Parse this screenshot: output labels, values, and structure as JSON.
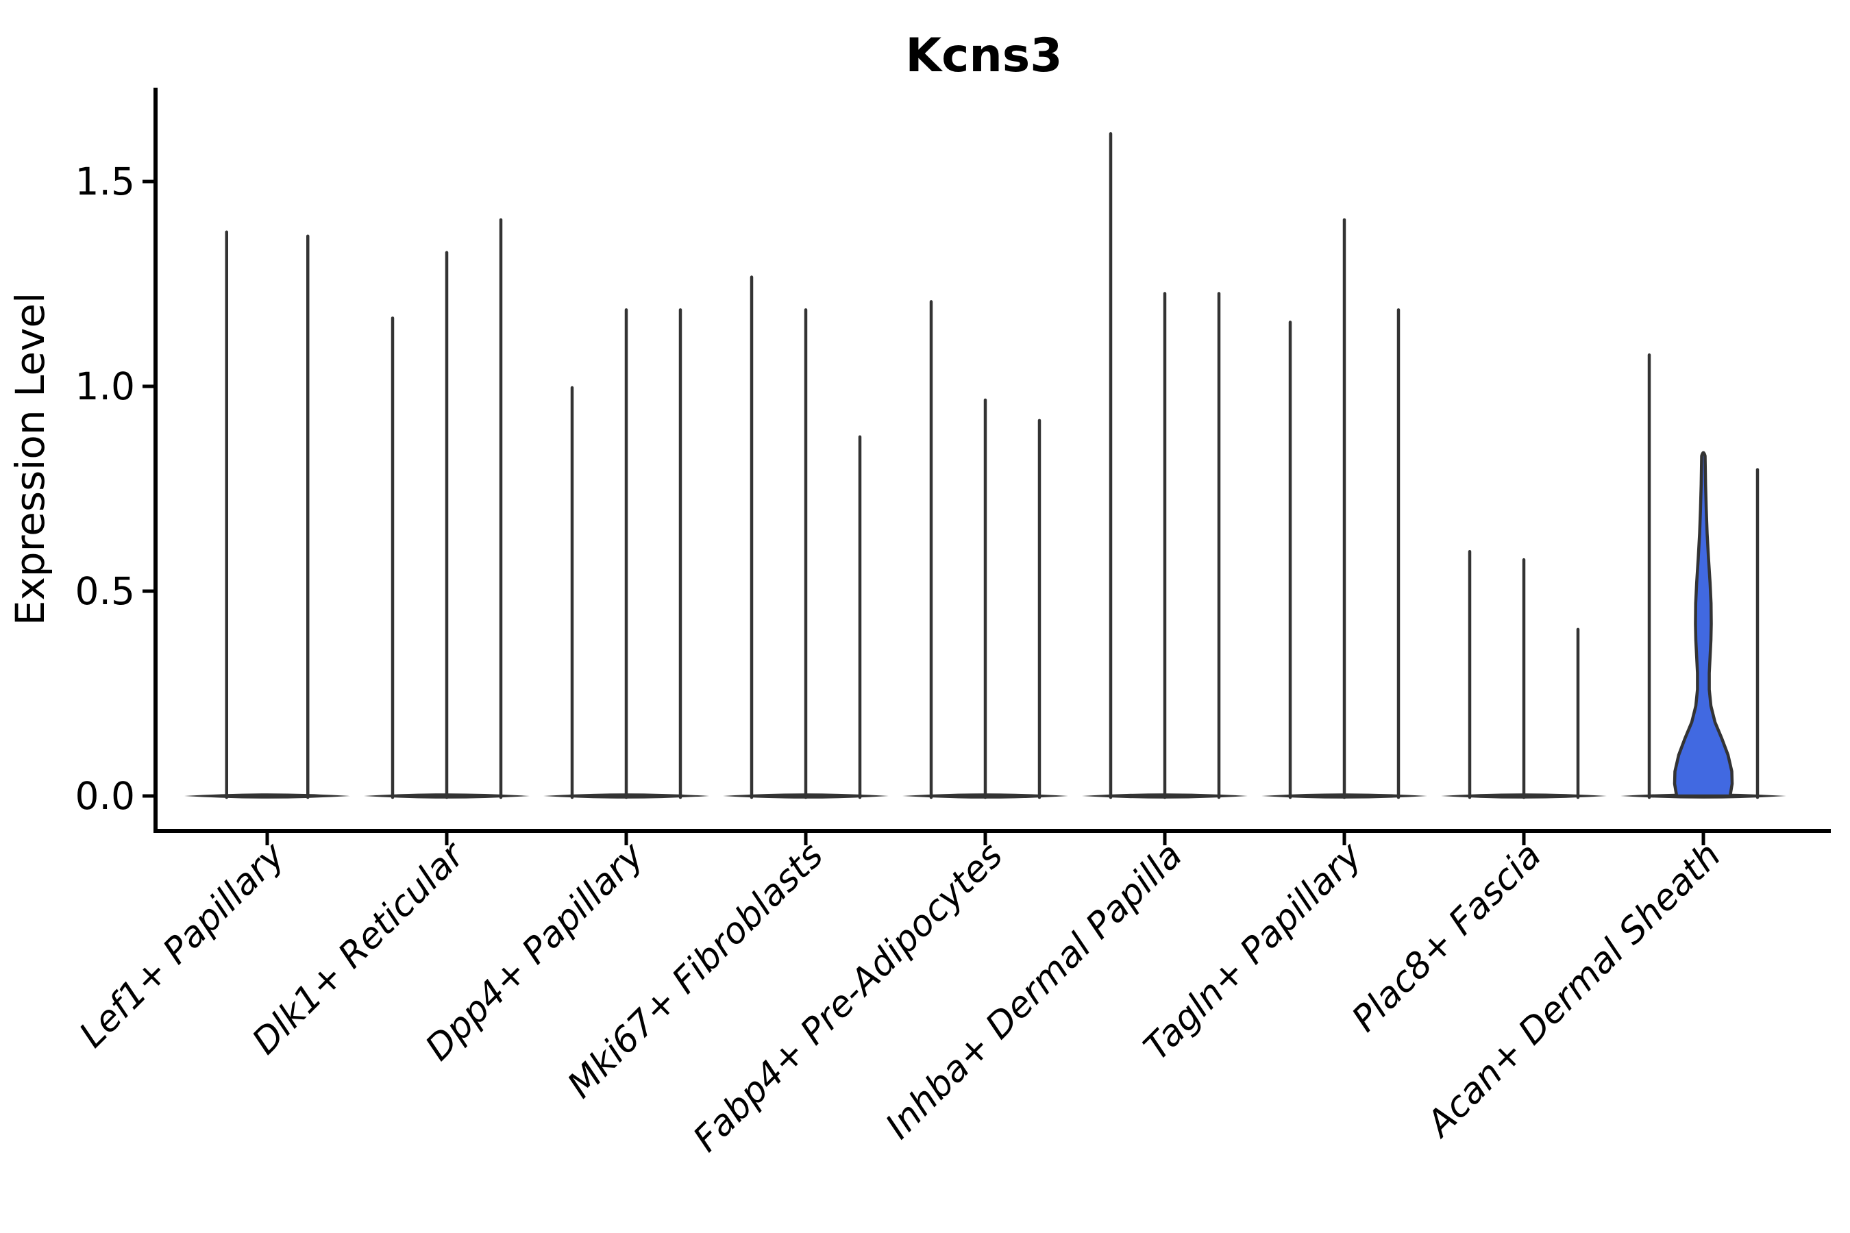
{
  "title": "Kcns3",
  "y_axis_label": "Expression Level",
  "colors": {
    "background": "#ffffff",
    "axis": "#000000",
    "violin_outline": "#333333",
    "highlight_fill": "#4169E1"
  },
  "chart_data": {
    "type": "violin",
    "title": "Kcns3",
    "xlabel": "",
    "ylabel": "Expression Level",
    "ylim": [
      0,
      1.73
    ],
    "grid": false,
    "legend_position": "none",
    "yticks": [
      "0.0",
      "0.5",
      "1.0",
      "1.5"
    ],
    "ytick_values": [
      0.0,
      0.5,
      1.0,
      1.5
    ],
    "categories": [
      "Lef1+ Papillary",
      "Dlk1+ Reticular",
      "Dpp4+ Papillary",
      "Mki67+ Fibroblasts",
      "Fabp4+ Pre-Adipocytes",
      "Inhba+ Dermal Papilla",
      "Tagln+ Papillary",
      "Plac8+ Fascia",
      "Acan+ Dermal Sheath"
    ],
    "description": "Each category shows 2-3 thin violins (near-zero density with a tall max-expression spike); values are the spike peak expression levels. The middle violin of Acan+ Dermal Sheath is highlighted blue with visible density.",
    "groups": [
      {
        "category": "Lef1+ Papillary",
        "violins": [
          {
            "pos": -0.75,
            "max": 1.38
          },
          {
            "pos": 0.75,
            "max": 1.37
          }
        ]
      },
      {
        "category": "Dlk1+ Reticular",
        "violins": [
          {
            "pos": -1,
            "max": 1.17
          },
          {
            "pos": 0,
            "max": 1.33
          },
          {
            "pos": 1,
            "max": 1.41
          }
        ]
      },
      {
        "category": "Dpp4+ Papillary",
        "violins": [
          {
            "pos": -1,
            "max": 1.0
          },
          {
            "pos": 0,
            "max": 1.19
          },
          {
            "pos": 1,
            "max": 1.19
          }
        ]
      },
      {
        "category": "Mki67+ Fibroblasts",
        "violins": [
          {
            "pos": -1,
            "max": 1.27
          },
          {
            "pos": 0,
            "max": 1.19
          },
          {
            "pos": 1,
            "max": 0.88
          }
        ]
      },
      {
        "category": "Fabp4+ Pre-Adipocytes",
        "violins": [
          {
            "pos": -1,
            "max": 1.21
          },
          {
            "pos": 0,
            "max": 0.97
          },
          {
            "pos": 1,
            "max": 0.92
          }
        ]
      },
      {
        "category": "Inhba+ Dermal Papilla",
        "violins": [
          {
            "pos": -1,
            "max": 1.62
          },
          {
            "pos": 0,
            "max": 1.23
          },
          {
            "pos": 1,
            "max": 1.23
          }
        ]
      },
      {
        "category": "Tagln+ Papillary",
        "violins": [
          {
            "pos": -1,
            "max": 1.16
          },
          {
            "pos": 0,
            "max": 1.41
          },
          {
            "pos": 1,
            "max": 1.19
          }
        ]
      },
      {
        "category": "Plac8+ Fascia",
        "violins": [
          {
            "pos": -1,
            "max": 0.6
          },
          {
            "pos": 0,
            "max": 0.58
          },
          {
            "pos": 1,
            "max": 0.41
          }
        ]
      },
      {
        "category": "Acan+ Dermal Sheath",
        "violins": [
          {
            "pos": -1,
            "max": 1.08
          },
          {
            "pos": 0,
            "max": 0.83,
            "highlight": true
          },
          {
            "pos": 1,
            "max": 0.8
          }
        ]
      }
    ],
    "highlight_profile": [
      [
        0.83,
        2.5
      ],
      [
        0.76,
        3.2
      ],
      [
        0.7,
        4.2
      ],
      [
        0.64,
        5.5
      ],
      [
        0.58,
        7.5
      ],
      [
        0.52,
        9.8
      ],
      [
        0.47,
        11.2
      ],
      [
        0.42,
        11.5
      ],
      [
        0.38,
        11.0
      ],
      [
        0.34,
        9.8
      ],
      [
        0.3,
        8.6
      ],
      [
        0.26,
        8.6
      ],
      [
        0.22,
        11.0
      ],
      [
        0.18,
        17.0
      ],
      [
        0.14,
        27.0
      ],
      [
        0.1,
        36.0
      ],
      [
        0.06,
        41.5
      ],
      [
        0.03,
        42.0
      ],
      [
        0.0,
        39.0
      ]
    ]
  }
}
